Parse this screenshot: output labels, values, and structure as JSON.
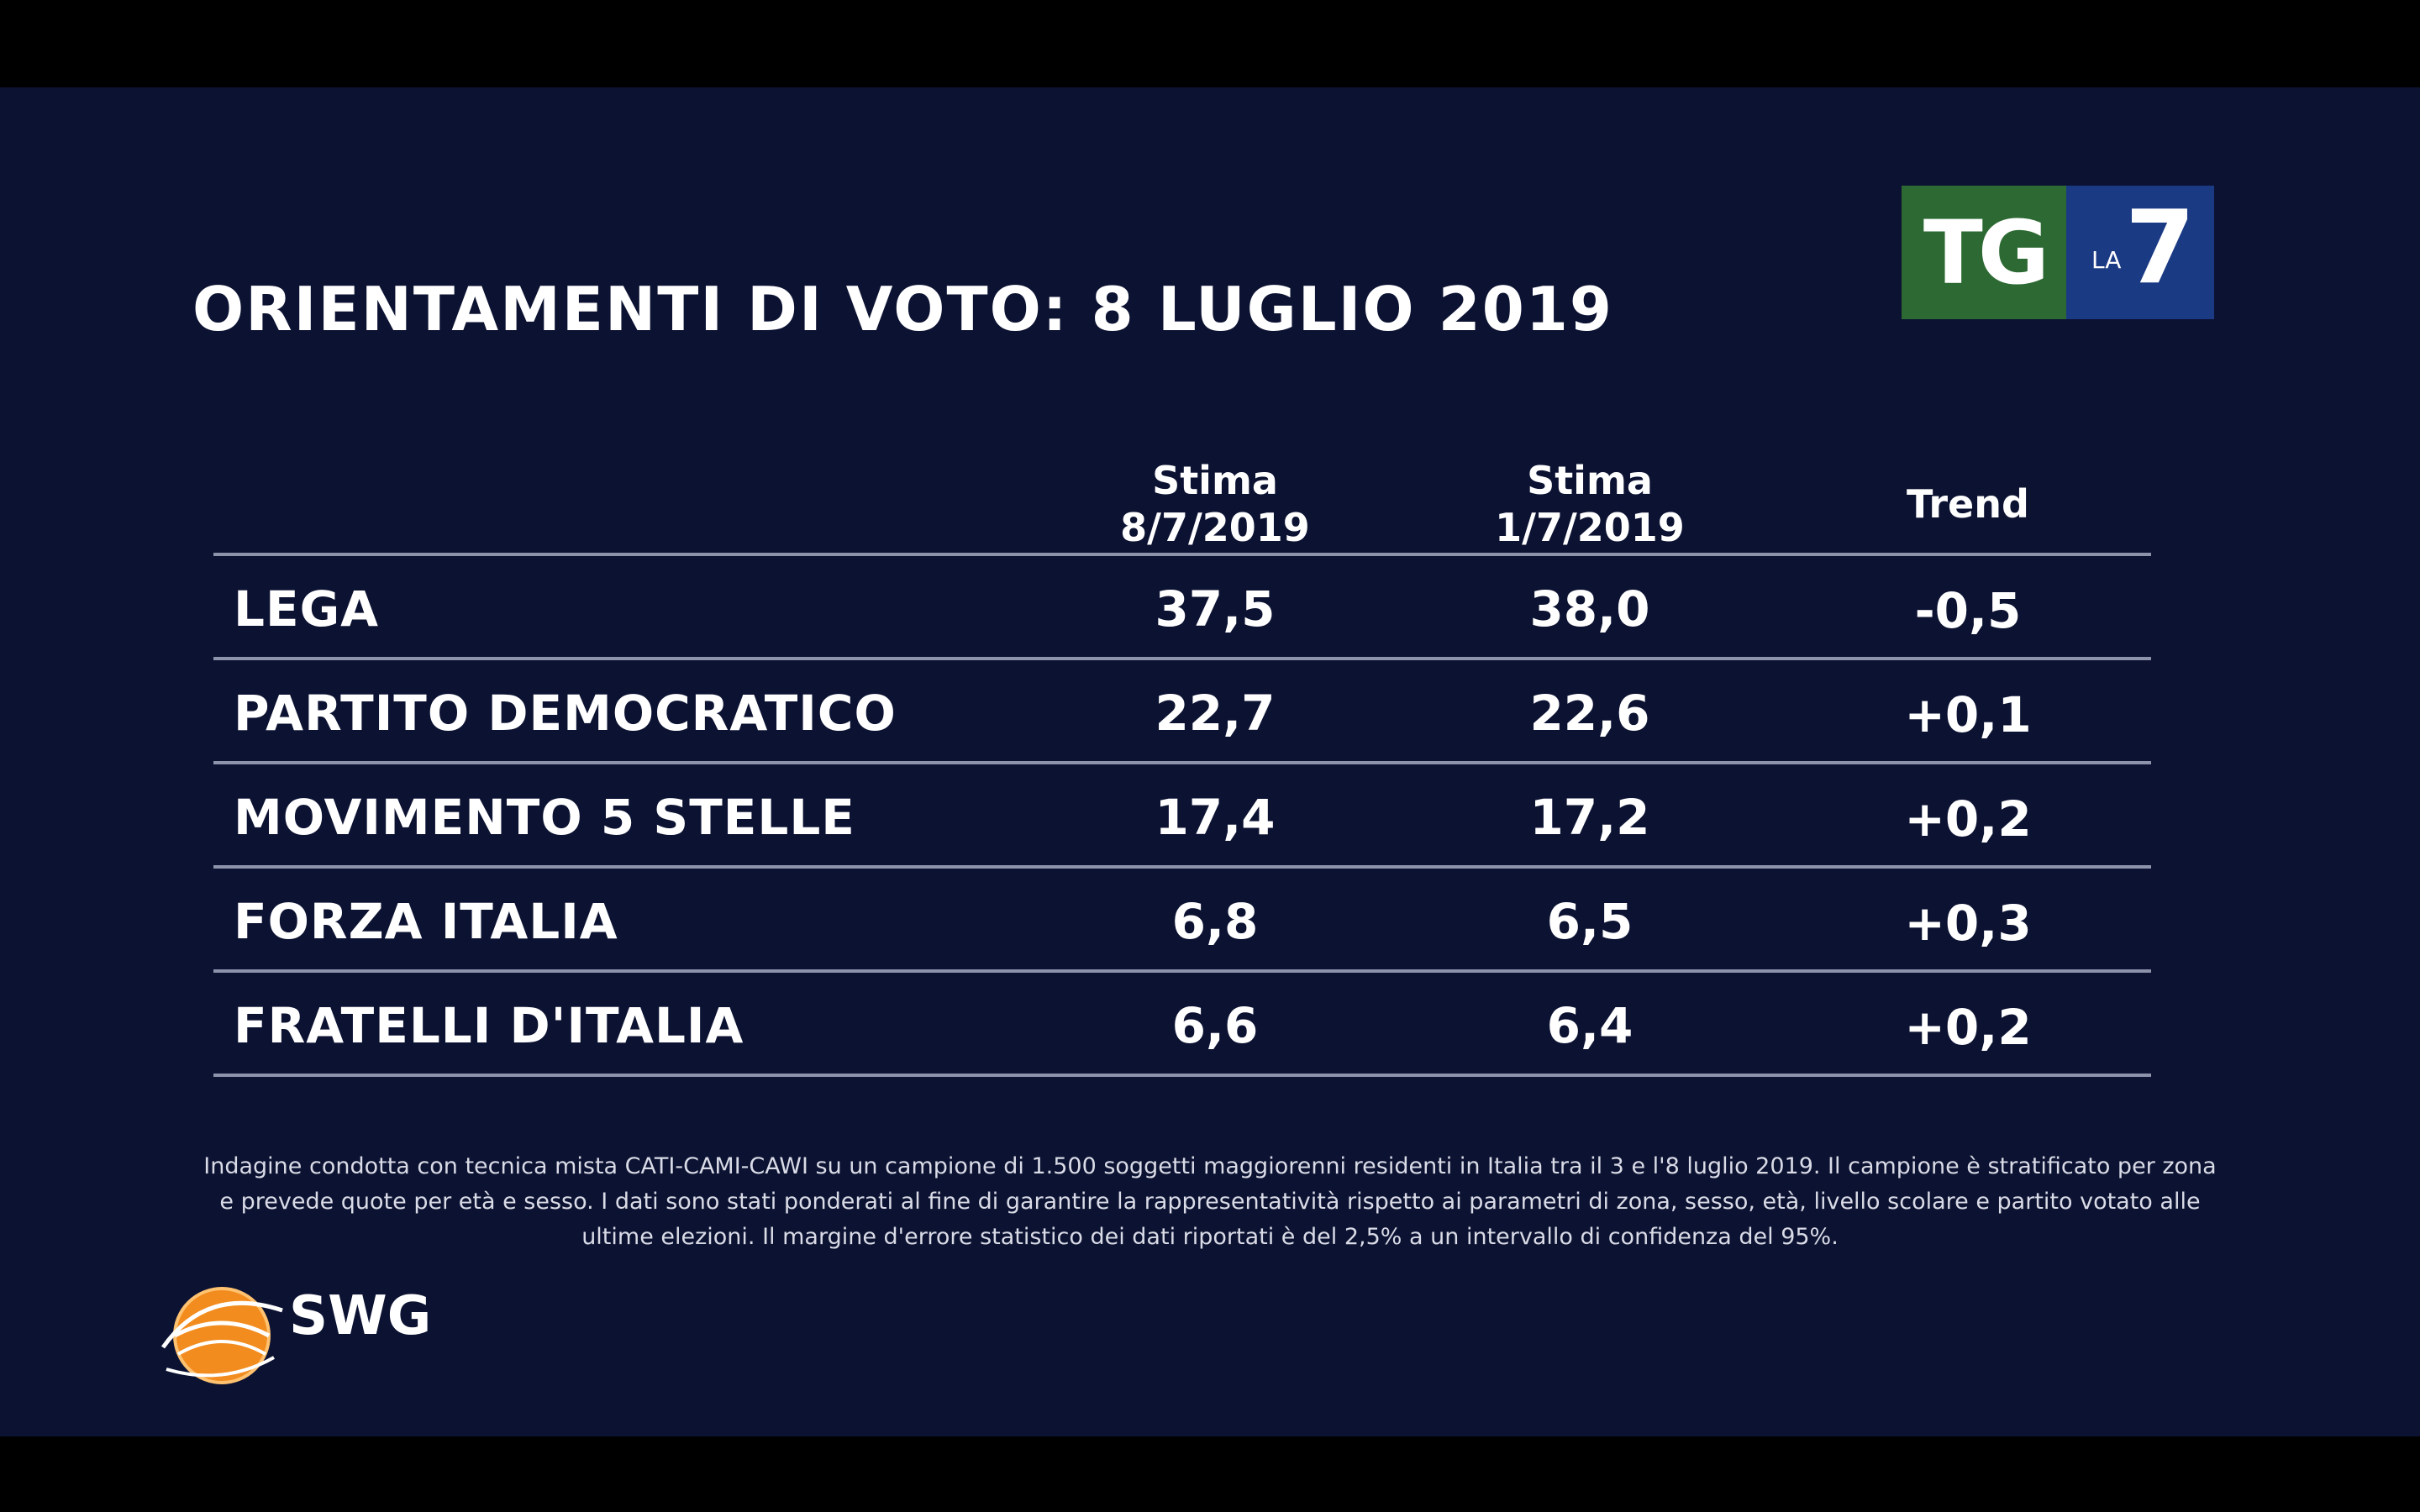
{
  "header": {
    "title": "ORIENTAMENTI DI VOTO: 8 LUGLIO 2019",
    "logo": {
      "tg": "TG",
      "la": "LA",
      "seven": "7"
    }
  },
  "chart_data": {
    "type": "table",
    "columns": [
      {
        "line1": "Stima",
        "line2": "8/7/2019"
      },
      {
        "line1": "Stima",
        "line2": "1/7/2019"
      },
      {
        "line1": "Trend",
        "line2": ""
      }
    ],
    "rows": [
      {
        "party": "LEGA",
        "values": [
          "37,5",
          "38,0",
          "-0,5"
        ]
      },
      {
        "party": "PARTITO DEMOCRATICO",
        "values": [
          "22,7",
          "22,6",
          "+0,1"
        ]
      },
      {
        "party": "MOVIMENTO 5 STELLE",
        "values": [
          "17,4",
          "17,2",
          "+0,2"
        ]
      },
      {
        "party": "FORZA ITALIA",
        "values": [
          "6,8",
          "6,5",
          "+0,3"
        ]
      },
      {
        "party": "FRATELLI D'ITALIA",
        "values": [
          "6,6",
          "6,4",
          "+0,2"
        ]
      }
    ]
  },
  "footnote": "Indagine condotta con tecnica mista CATI-CAMI-CAWI su un campione di 1.500 soggetti maggiorenni residenti in Italia tra il 3 e l'8 luglio 2019. Il campione è stratificato per zona e prevede quote per età e sesso. I dati sono stati ponderati al fine di garantire la rappresentatività rispetto ai parametri di zona, sesso, età, livello scolare e partito votato alle ultime elezioni. Il margine d'errore statistico dei dati riportati è del 2,5% a un intervallo di confidenza del 95%.",
  "swg": {
    "name": "SWG"
  },
  "colors": {
    "background": "#0c1232",
    "tg_green": "#2d6a33",
    "la7_blue": "#1a3a84",
    "rule": "#8d93ab",
    "swg_orange": "#f28c1e"
  }
}
